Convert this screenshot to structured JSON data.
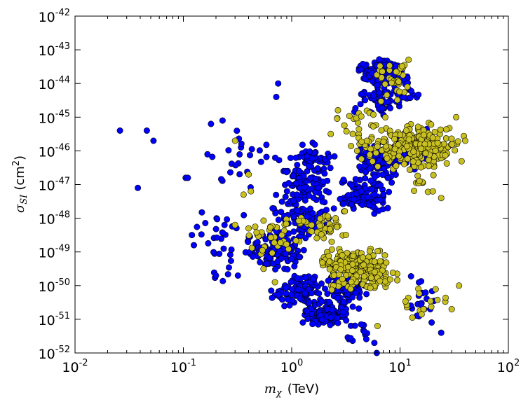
{
  "chart_data": {
    "type": "scatter",
    "title": "",
    "xlabel": "m_χ (TeV)",
    "xlabel_symbol": "m",
    "xlabel_subscript": "χ",
    "xlabel_unit": "(TeV)",
    "ylabel": "σ_SI (cm²)",
    "ylabel_symbol": "σ",
    "ylabel_subscript": "SI",
    "ylabel_unit_base": "(cm",
    "ylabel_unit_exp": "2",
    "ylabel_unit_close": ")",
    "x_scale": "log",
    "y_scale": "log",
    "xlim": [
      0.01,
      100
    ],
    "ylim": [
      1e-52,
      1e-42
    ],
    "x_tick_base": "10",
    "x_ticks": [
      {
        "value": 0.01,
        "exp": "-2"
      },
      {
        "value": 0.1,
        "exp": "-1"
      },
      {
        "value": 1,
        "exp": "0"
      },
      {
        "value": 10,
        "exp": "1"
      },
      {
        "value": 100,
        "exp": "2"
      }
    ],
    "y_tick_base": "10",
    "y_ticks": [
      {
        "value": 1e-52,
        "exp": "-52"
      },
      {
        "value": 1e-51,
        "exp": "-51"
      },
      {
        "value": 1e-50,
        "exp": "-50"
      },
      {
        "value": 1e-49,
        "exp": "-49"
      },
      {
        "value": 1e-48,
        "exp": "-48"
      },
      {
        "value": 1e-47,
        "exp": "-47"
      },
      {
        "value": 1e-46,
        "exp": "-46"
      },
      {
        "value": 1e-45,
        "exp": "-45"
      },
      {
        "value": 1e-44,
        "exp": "-44"
      },
      {
        "value": 1e-43,
        "exp": "-43"
      },
      {
        "value": 1e-42,
        "exp": "-42"
      }
    ],
    "grid": false,
    "series": [
      {
        "name": "blue",
        "color": "#0000ff",
        "clusters": [
          {
            "x": [
              1.2,
              3.5
            ],
            "y": [
              -51.2,
              -50.6
            ],
            "n": 120,
            "seed": 1
          },
          {
            "x": [
              0.6,
              2.5
            ],
            "y": [
              -50.7,
              -49.6
            ],
            "n": 110,
            "seed": 2
          },
          {
            "x": [
              2.0,
              5.0
            ],
            "y": [
              -50.9,
              -49.4
            ],
            "n": 100,
            "seed": 3
          },
          {
            "x": [
              0.35,
              1.5
            ],
            "y": [
              -49.6,
              -48.3
            ],
            "n": 110,
            "seed": 4
          },
          {
            "x": [
              0.6,
              2.6
            ],
            "y": [
              -48.6,
              -47.2
            ],
            "n": 95,
            "seed": 5
          },
          {
            "x": [
              0.7,
              2.5
            ],
            "y": [
              -47.4,
              -46.4
            ],
            "n": 75,
            "seed": 6
          },
          {
            "x": [
              0.9,
              2.8
            ],
            "y": [
              -46.7,
              -45.7
            ],
            "n": 50,
            "seed": 7
          },
          {
            "x": [
              2.6,
              8.5
            ],
            "y": [
              -48.0,
              -46.7
            ],
            "n": 110,
            "seed": 8
          },
          {
            "x": [
              3.5,
              11.0
            ],
            "y": [
              -47.0,
              -45.6
            ],
            "n": 100,
            "seed": 9
          },
          {
            "x": [
              8.0,
              20.0
            ],
            "y": [
              -46.7,
              -45.2
            ],
            "n": 55,
            "seed": 10
          },
          {
            "x": [
              4.0,
              11.0
            ],
            "y": [
              -44.1,
              -43.2
            ],
            "n": 140,
            "seed": 11
          },
          {
            "x": [
              3.5,
              11.0
            ],
            "y": [
              -45.0,
              -44.0
            ],
            "n": 60,
            "seed": 12
          },
          {
            "x": [
              0.15,
              0.35
            ],
            "y": [
              -50.3,
              -47.8
            ],
            "n": 18,
            "seed": 13
          },
          {
            "x": [
              0.12,
              0.8
            ],
            "y": [
              -47.2,
              -45.3
            ],
            "n": 25,
            "seed": 14
          },
          {
            "x": [
              11.0,
              24.0
            ],
            "y": [
              -51.3,
              -49.4
            ],
            "n": 20,
            "seed": 15
          },
          {
            "x": [
              2.6,
              7.5
            ],
            "y": [
              -51.9,
              -51.0
            ],
            "n": 15,
            "seed": 16
          },
          {
            "x": [
              10.0,
              16.0
            ],
            "y": [
              -44.7,
              -43.6
            ],
            "n": 14,
            "seed": 17
          },
          {
            "x": [
              0.11,
              0.5
            ],
            "y": [
              -49.0,
              -47.6
            ],
            "n": 14,
            "seed": 18
          }
        ],
        "points": [
          [
            0.026,
            -45.4
          ],
          [
            0.046,
            -45.4
          ],
          [
            0.053,
            -45.7
          ],
          [
            0.038,
            -47.1
          ],
          [
            0.105,
            -46.8
          ],
          [
            0.11,
            -46.8
          ],
          [
            0.12,
            -48.5
          ],
          [
            0.125,
            -48.8
          ],
          [
            0.18,
            -45.2
          ],
          [
            0.23,
            -45.1
          ],
          [
            0.24,
            -48.2
          ],
          [
            0.2,
            -49.7
          ],
          [
            0.75,
            -44.0
          ],
          [
            0.72,
            -44.4
          ],
          [
            5.8,
            -51.7
          ],
          [
            6.1,
            -52.0
          ],
          [
            19.0,
            -50.7
          ],
          [
            24.0,
            -51.4
          ]
        ]
      },
      {
        "name": "yellow",
        "color": "#c8c020",
        "clusters": [
          {
            "x": [
              1.8,
              7.5
            ],
            "y": [
              -49.7,
              -48.9
            ],
            "n": 150,
            "seed": 21
          },
          {
            "x": [
              2.0,
              11.0
            ],
            "y": [
              -50.2,
              -49.4
            ],
            "n": 80,
            "seed": 22
          },
          {
            "x": [
              1.0,
              3.5
            ],
            "y": [
              -48.8,
              -47.7
            ],
            "n": 45,
            "seed": 23
          },
          {
            "x": [
              0.35,
              1.3
            ],
            "y": [
              -49.2,
              -47.6
            ],
            "n": 35,
            "seed": 24
          },
          {
            "x": [
              6.0,
              40.0
            ],
            "y": [
              -46.6,
              -45.1
            ],
            "n": 240,
            "seed": 25
          },
          {
            "x": [
              3.0,
              9.0
            ],
            "y": [
              -46.4,
              -45.3
            ],
            "n": 30,
            "seed": 26
          },
          {
            "x": [
              5.5,
              14.0
            ],
            "y": [
              -44.6,
              -43.1
            ],
            "n": 35,
            "seed": 27
          },
          {
            "x": [
              2.2,
              9.0
            ],
            "y": [
              -45.6,
              -44.6
            ],
            "n": 20,
            "seed": 28
          },
          {
            "x": [
              10.0,
              30.0
            ],
            "y": [
              -51.0,
              -49.9
            ],
            "n": 16,
            "seed": 29
          },
          {
            "x": [
              12.0,
              22.0
            ],
            "y": [
              -47.4,
              -46.4
            ],
            "n": 12,
            "seed": 30
          }
        ],
        "points": [
          [
            0.3,
            -45.7
          ],
          [
            0.4,
            -46.7
          ],
          [
            0.36,
            -47.3
          ],
          [
            0.42,
            -47.2
          ],
          [
            0.3,
            -48.2
          ],
          [
            0.4,
            -48.3
          ],
          [
            0.55,
            -49.5
          ],
          [
            0.7,
            -49.9
          ],
          [
            6.2,
            -51.2
          ],
          [
            24.0,
            -47.4
          ],
          [
            33.0,
            -45.0
          ],
          [
            40.0,
            -45.7
          ],
          [
            30.0,
            -50.7
          ],
          [
            35.0,
            -50.0
          ]
        ]
      }
    ]
  }
}
